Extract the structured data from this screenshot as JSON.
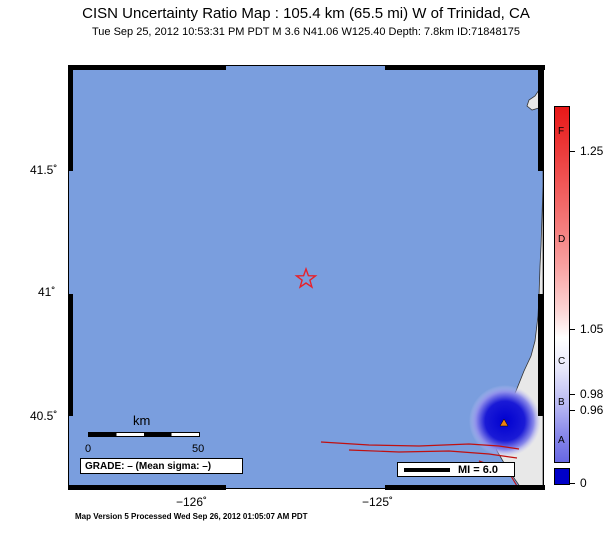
{
  "title": "CISN Uncertainty Ratio Map : 105.4 km (65.5 mi) W of Trinidad, CA",
  "subtitle": "Tue Sep 25, 2012 10:53:31 PM PDT   M 3.6   N41.06 W125.40   Depth: 7.8km   ID:71848175",
  "footer": "Map Version 5 Processed Wed Sep 26, 2012 01:05:07 AM PDT",
  "lat_labels": [
    "41.5˚",
    "41˚",
    "40.5˚"
  ],
  "lon_labels": [
    "−126˚",
    "−125˚"
  ],
  "scale": {
    "unit": "km",
    "start": "0",
    "end": "50"
  },
  "grade_text": "GRADE: – (Mean sigma: –)",
  "mi_label": "MI = 6.0",
  "colorbar": {
    "values": [
      "1.25",
      "1.05",
      "0.98",
      "0.96",
      "0"
    ],
    "letters": [
      "F",
      "D",
      "C",
      "B",
      "A"
    ]
  },
  "colors": {
    "ocean": "#7a9ede",
    "land": "#e8e8e8",
    "epicenter": "#e8202a",
    "station": "#f08010",
    "fault": "#c01010",
    "uncertainty_blue": "#0000c8"
  },
  "icons": {
    "epicenter": "star-icon",
    "station": "triangle-icon"
  }
}
